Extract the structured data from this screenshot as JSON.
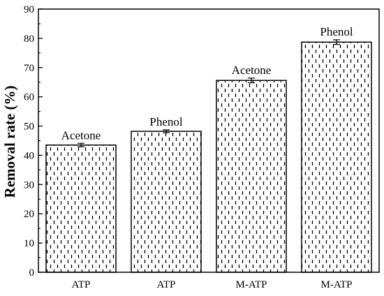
{
  "chart_data": {
    "type": "bar",
    "categories": [
      "ATP",
      "ATP",
      "M-ATP",
      "M-ATP"
    ],
    "values": [
      43.5,
      48.2,
      65.6,
      78.7
    ],
    "errors": [
      0.6,
      0.5,
      0.8,
      0.8
    ],
    "bar_labels": [
      "Acetone",
      "Phenol",
      "Acetone",
      "Phenol"
    ],
    "title": "",
    "xlabel": "",
    "ylabel": "Removal rate (%)",
    "ylim": [
      0,
      90
    ],
    "yticks": [
      0,
      10,
      20,
      30,
      40,
      50,
      60,
      70,
      80,
      90
    ],
    "grid": false,
    "legend": "none",
    "bar_fill": "#ffffff",
    "bar_pattern": "short vertical dashes",
    "bar_outline": "#000000"
  }
}
